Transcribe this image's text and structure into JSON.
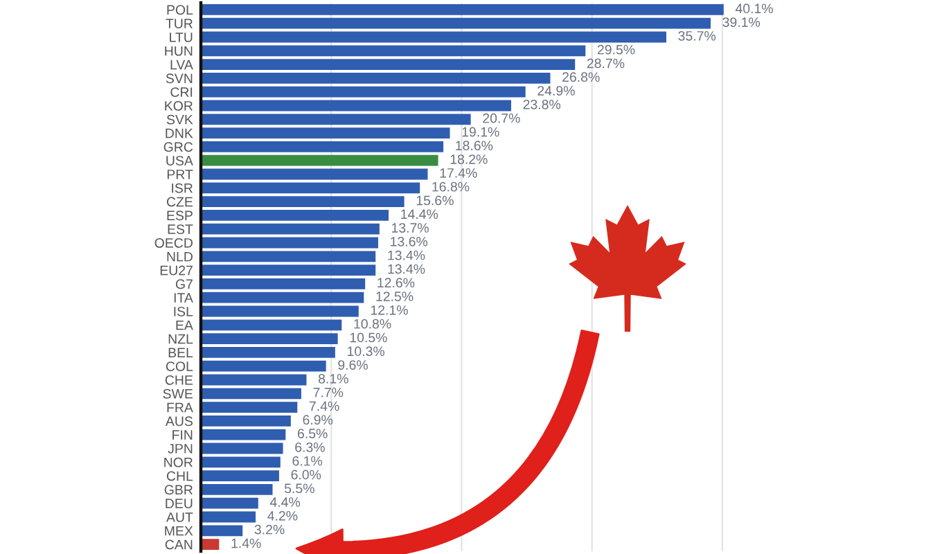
{
  "chart_data": {
    "type": "bar",
    "orientation": "horizontal",
    "categories": [
      "POL",
      "TUR",
      "LTU",
      "HUN",
      "LVA",
      "SVN",
      "CRI",
      "KOR",
      "SVK",
      "DNK",
      "GRC",
      "USA",
      "PRT",
      "ISR",
      "CZE",
      "ESP",
      "EST",
      "OECD",
      "NLD",
      "EU27",
      "G7",
      "ITA",
      "ISL",
      "EA",
      "NZL",
      "BEL",
      "COL",
      "CHE",
      "SWE",
      "FRA",
      "AUS",
      "FIN",
      "JPN",
      "NOR",
      "CHL",
      "GBR",
      "DEU",
      "AUT",
      "MEX",
      "CAN"
    ],
    "values": [
      40.1,
      39.1,
      35.7,
      29.5,
      28.7,
      26.8,
      24.9,
      23.8,
      20.7,
      19.1,
      18.6,
      18.2,
      17.4,
      16.8,
      15.6,
      14.4,
      13.7,
      13.6,
      13.4,
      13.4,
      12.6,
      12.5,
      12.1,
      10.8,
      10.5,
      10.3,
      9.6,
      8.1,
      7.7,
      7.4,
      6.9,
      6.5,
      6.3,
      6.1,
      6.0,
      5.5,
      4.4,
      4.2,
      3.2,
      1.4
    ],
    "value_labels": [
      "40.1%",
      "39.1%",
      "35.7%",
      "29.5%",
      "28.7%",
      "26.8%",
      "24.9%",
      "23.8%",
      "20.7%",
      "19.1%",
      "18.6%",
      "18.2%",
      "17.4%",
      "16.8%",
      "15.6%",
      "14.4%",
      "13.7%",
      "13.6%",
      "13.4%",
      "13.4%",
      "12.6%",
      "12.5%",
      "12.1%",
      "10.8%",
      "10.5%",
      "10.3%",
      "9.6%",
      "8.1%",
      "7.7%",
      "7.4%",
      "6.9%",
      "6.5%",
      "6.3%",
      "6.1%",
      "6.0%",
      "5.5%",
      "4.4%",
      "4.2%",
      "3.2%",
      "1.4%"
    ],
    "colors": [
      "#2f5db0",
      "#2f5db0",
      "#2f5db0",
      "#2f5db0",
      "#2f5db0",
      "#2f5db0",
      "#2f5db0",
      "#2f5db0",
      "#2f5db0",
      "#2f5db0",
      "#2f5db0",
      "#3a8c43",
      "#2f5db0",
      "#2f5db0",
      "#2f5db0",
      "#2f5db0",
      "#2f5db0",
      "#2f5db0",
      "#2f5db0",
      "#2f5db0",
      "#2f5db0",
      "#2f5db0",
      "#2f5db0",
      "#2f5db0",
      "#2f5db0",
      "#2f5db0",
      "#2f5db0",
      "#2f5db0",
      "#2f5db0",
      "#2f5db0",
      "#2f5db0",
      "#2f5db0",
      "#2f5db0",
      "#2f5db0",
      "#2f5db0",
      "#2f5db0",
      "#2f5db0",
      "#2f5db0",
      "#2f5db0",
      "#c83a32"
    ],
    "xticks": [
      {
        "value": 10,
        "label": null
      },
      {
        "value": 20,
        "label": null
      },
      {
        "value": 30,
        "label": null
      },
      {
        "value": 40,
        "label": null
      }
    ],
    "tick_labels": "y",
    "grid": "x"
  }
}
